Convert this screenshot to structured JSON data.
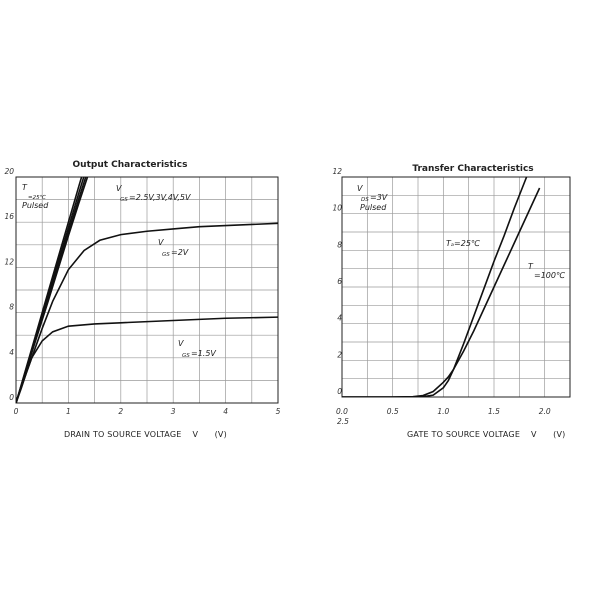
{
  "chart_data": [
    {
      "type": "line",
      "title": "Output Characteristics",
      "xlabel": "DRAIN TO SOURCE VOLTAGE    V      (V)",
      "ylabel": "",
      "xlim": [
        0,
        5
      ],
      "ylim": [
        0,
        20
      ],
      "x_ticks": [
        "0",
        "1",
        "2",
        "3",
        "4",
        "5"
      ],
      "y_ticks": [
        "0",
        "4",
        "8",
        "12",
        "16",
        "20"
      ],
      "grid": true,
      "annotations": {
        "cond_t": "T",
        "cond_t_sub": "=25℃",
        "cond_pulsed": "Pulsed",
        "vgs_high_v": "V",
        "vgs_high_sub": "GS",
        "vgs_high_val": "=2.5V,3V,4V,5V",
        "vgs_2_v": "V",
        "vgs_2_sub": "GS",
        "vgs_2_val": "=2V",
        "vgs_15_v": "V",
        "vgs_15_sub": "GS",
        "vgs_15_val": "=1.5V"
      },
      "series": [
        {
          "x": [
            0,
            0.1,
            0.2,
            0.4,
            0.6,
            0.8,
            1.0,
            1.2,
            1.4,
            1.6
          ],
          "y": [
            0,
            1.5,
            3.0,
            5.9,
            8.8,
            11.8,
            14.8,
            17.7,
            20.5,
            23.3
          ]
        },
        {
          "x": [
            0,
            0.1,
            0.2,
            0.4,
            0.6,
            0.8,
            1.0,
            1.2,
            1.4,
            1.55
          ],
          "y": [
            0,
            1.5,
            3.0,
            6.0,
            9.0,
            12.0,
            15.1,
            18.1,
            21.0,
            23.0
          ]
        },
        {
          "x": [
            0,
            0.1,
            0.2,
            0.4,
            0.6,
            0.8,
            1.0,
            1.2,
            1.4,
            1.5
          ],
          "y": [
            0,
            1.55,
            3.1,
            6.2,
            9.3,
            12.4,
            15.5,
            18.6,
            21.6,
            23.0
          ]
        },
        {
          "x": [
            0,
            0.1,
            0.2,
            0.4,
            0.6,
            0.8,
            1.0,
            1.2,
            1.4
          ],
          "y": [
            0,
            1.6,
            3.2,
            6.4,
            9.6,
            12.8,
            16.0,
            19.2,
            22.3
          ]
        },
        {
          "x": [
            0,
            0.1,
            0.2,
            0.3,
            0.5,
            0.7,
            1.0,
            1.3,
            1.6,
            2.0,
            2.5,
            3.0,
            3.5,
            4.0,
            4.5,
            5.0
          ],
          "y": [
            0,
            1.3,
            2.7,
            4.0,
            6.6,
            9.0,
            11.8,
            13.5,
            14.4,
            14.9,
            15.2,
            15.4,
            15.6,
            15.7,
            15.8,
            15.9
          ]
        },
        {
          "x": [
            0,
            0.1,
            0.2,
            0.3,
            0.5,
            0.7,
            1.0,
            1.5,
            2.0,
            3.0,
            4.0,
            5.0
          ],
          "y": [
            0,
            1.4,
            2.7,
            4.0,
            5.5,
            6.3,
            6.8,
            7.0,
            7.1,
            7.3,
            7.5,
            7.6
          ]
        }
      ]
    },
    {
      "type": "line",
      "title": "Transfer Characteristics",
      "xlabel": "GATE TO SOURCE VOLTAGE    V      (V)",
      "ylabel": "",
      "xlim": [
        0,
        2.25
      ],
      "ylim": [
        0,
        12
      ],
      "x_ticks": [
        "0.0",
        "0.5",
        "1.0",
        "1.5",
        "2.0"
      ],
      "x_tick_extra": "2.5",
      "y_ticks": [
        "0",
        "2",
        "4",
        "6",
        "8",
        "10",
        "12"
      ],
      "grid": true,
      "annotations": {
        "cond_v": "V",
        "cond_sub": "DS",
        "cond_val": "=3V",
        "cond_pulsed": "Pulsed",
        "t25": "Tₐ=25℃",
        "t100_t": "T",
        "t100_val": "=100℃"
      },
      "series": [
        {
          "x": [
            0,
            0.5,
            0.8,
            0.9,
            1.0,
            1.05,
            1.1,
            1.2,
            1.3,
            1.4,
            1.5,
            1.6,
            1.7,
            1.8,
            1.85
          ],
          "y": [
            0,
            0,
            0.02,
            0.1,
            0.5,
            0.9,
            1.5,
            2.9,
            4.4,
            5.9,
            7.4,
            8.8,
            10.3,
            11.7,
            12.4
          ]
        },
        {
          "x": [
            0,
            0.5,
            0.7,
            0.8,
            0.9,
            1.0,
            1.05,
            1.1,
            1.2,
            1.3,
            1.4,
            1.5,
            1.6,
            1.7,
            1.8,
            1.9,
            1.95
          ],
          "y": [
            0,
            0,
            0.02,
            0.08,
            0.3,
            0.8,
            1.1,
            1.5,
            2.5,
            3.6,
            4.8,
            6.0,
            7.2,
            8.4,
            9.6,
            10.8,
            11.4
          ]
        }
      ]
    }
  ]
}
